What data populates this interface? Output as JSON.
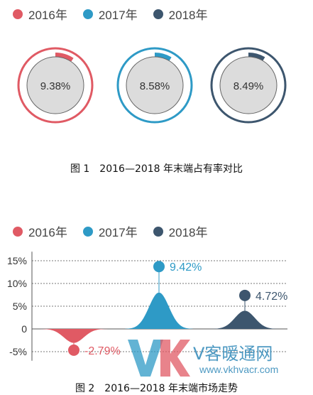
{
  "colors": {
    "y2016": "#e05a64",
    "y2017": "#2e9ac6",
    "y2018": "#3d566e",
    "inner": "#dcdcdc",
    "grid": "#777777"
  },
  "legend1": [
    "2016年",
    "2017年",
    "2018年"
  ],
  "legend2": [
    "2016年",
    "2017年",
    "2018年"
  ],
  "figure1": {
    "caption": "图 1　2016—2018 年末端占有率对比"
  },
  "figure2": {
    "caption": "图 2　2016—2018 年末端市场走势"
  },
  "watermark": {
    "logo": "VK",
    "brand": "V客暖通网",
    "url": "www.vkhvacr.com"
  },
  "chart_data": [
    {
      "type": "donut",
      "series": [
        {
          "name": "2016年",
          "value": 9.38,
          "label": "9.38%"
        },
        {
          "name": "2017年",
          "value": 8.58,
          "label": "8.58%"
        },
        {
          "name": "2018年",
          "value": 8.49,
          "label": "8.49%"
        }
      ]
    },
    {
      "type": "area",
      "y_unit": "%",
      "ylim": [
        -7,
        17
      ],
      "yticks": [
        15,
        10,
        5,
        0,
        -5
      ],
      "ytick_labels": [
        "15%",
        "10%",
        "5%",
        "0",
        "-5%"
      ],
      "grid": true,
      "series": [
        {
          "name": "2016年",
          "value": -2.79,
          "label": "-2.79%"
        },
        {
          "name": "2017年",
          "value": 9.42,
          "label": "9.42%"
        },
        {
          "name": "2018年",
          "value": 4.72,
          "label": "4.72%"
        }
      ]
    }
  ]
}
